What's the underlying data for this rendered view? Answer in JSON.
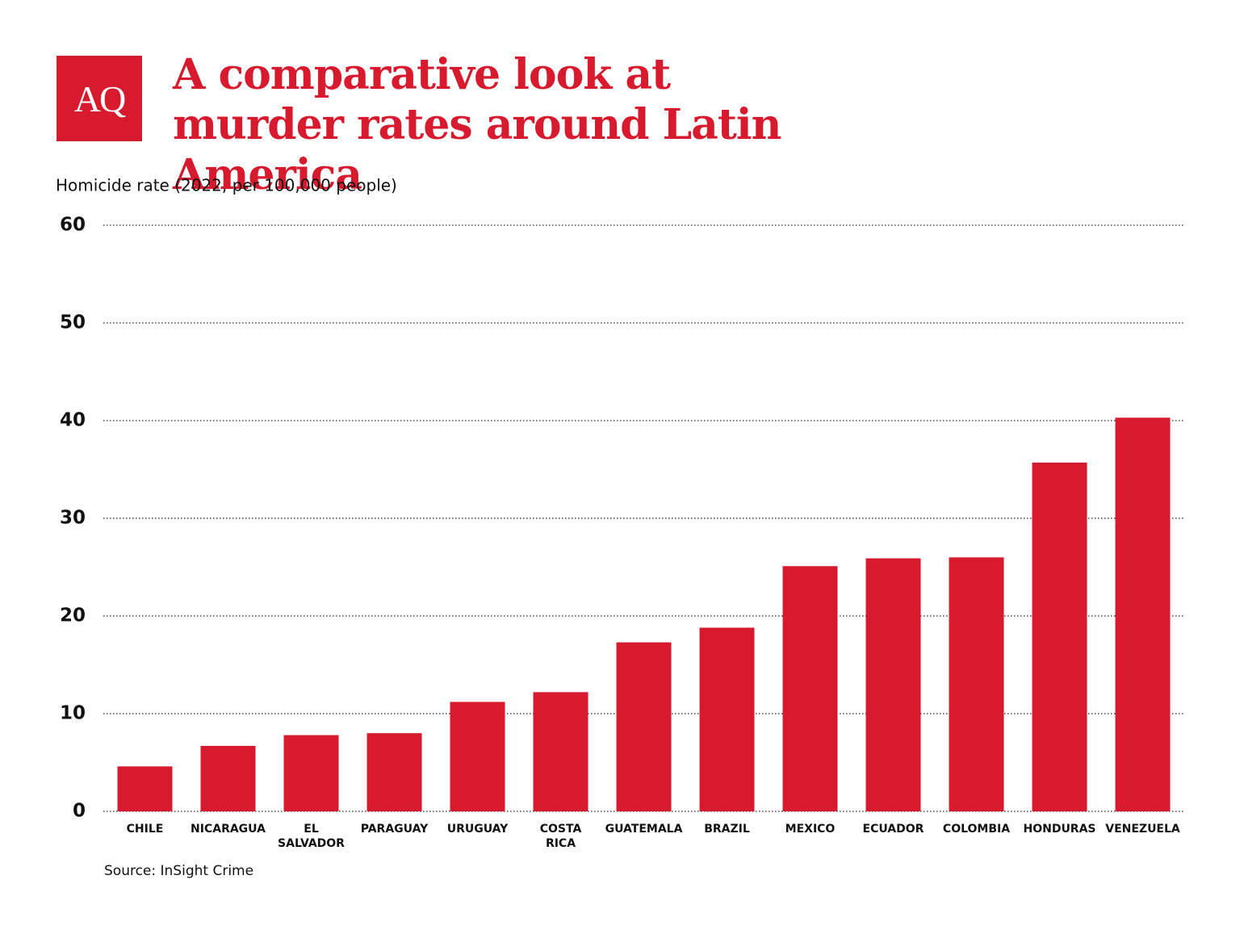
{
  "chart_data": {
    "type": "bar",
    "logo": "AQ",
    "title": "A comparative look at murder rates around Latin America",
    "y_label": "Homicide rate (2022, per 100,000 people)",
    "source": "Source: InSight Crime",
    "categories": [
      "CHILE",
      "NICARAGUA",
      "EL SALVADOR",
      "PARAGUAY",
      "URUGUAY",
      "COSTA RICA",
      "GUATEMALA",
      "BRAZIL",
      "MEXICO",
      "ECUADOR",
      "COLOMBIA",
      "HONDURAS",
      "VENEZUELA"
    ],
    "values": [
      4.6,
      6.7,
      7.8,
      8.0,
      11.2,
      12.2,
      17.3,
      18.8,
      25.1,
      25.9,
      26.0,
      35.7,
      40.3
    ],
    "color": "#d71a2e",
    "ylim": [
      0,
      60
    ],
    "yticks": [
      0,
      10,
      20,
      30,
      40,
      50,
      60
    ],
    "grid": true
  }
}
